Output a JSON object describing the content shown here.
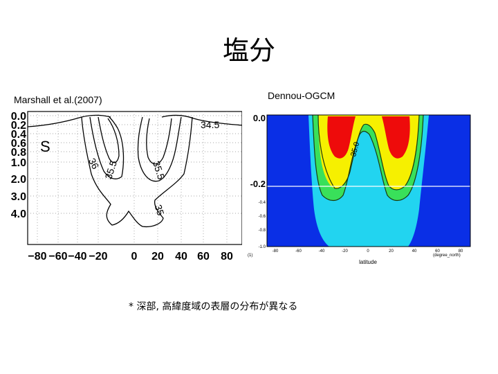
{
  "slide": {
    "title": "塩分",
    "footnote": "* 深部, 高緯度域の表層の分布が異なる"
  },
  "left_figure": {
    "caption": "Marshall et al.(2007)",
    "panel_letter": "S",
    "y_ticks": [
      "0.0",
      "0.2",
      "0.4",
      "0.6",
      "0.8",
      "1.0",
      "2.0",
      "3.0",
      "4.0"
    ],
    "x_ticks": [
      "−80",
      "−60",
      "−40",
      "−20",
      "0",
      "20",
      "40",
      "60",
      "80"
    ],
    "contour_labels": [
      "34.5",
      "36",
      "35.5",
      "35.5",
      "35"
    ]
  },
  "right_figure": {
    "caption": "Dennou-OGCM",
    "y_ticks": [
      "0.0",
      "-0.2",
      "-0.4",
      "-0.6",
      "-0.8",
      "-1.0"
    ],
    "x_ticks": [
      "-80",
      "-60",
      "-40",
      "-20",
      "0",
      "20",
      "40",
      "60",
      "80"
    ],
    "x_label": "latitude",
    "x_unit": "(degree_north)",
    "y_unit": "(1)",
    "contour_labels": [
      "35.0"
    ],
    "colors": {
      "deep_blue": "#0a2fe6",
      "cyan": "#22d4f0",
      "green": "#39e05a",
      "yellow": "#f6f000",
      "red": "#ee0b0b"
    }
  }
}
